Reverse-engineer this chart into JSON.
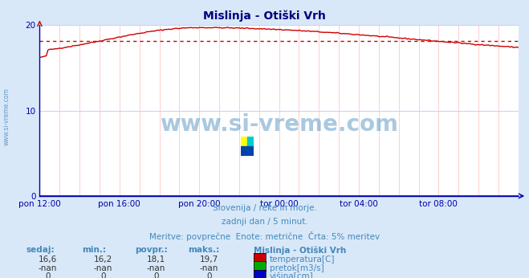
{
  "title": "Mislinja - Otiški Vrh",
  "bg_color": "#d8e8f8",
  "plot_bg_color": "#ffffff",
  "title_color": "#000080",
  "axis_color": "#0000aa",
  "tick_color": "#0000aa",
  "grid_color_h": "#ccccff",
  "grid_color_v": "#ffbbbb",
  "temp_color": "#cc0000",
  "avg_line_color": "#cc0000",
  "height_color": "#0000cc",
  "watermark_color": "#4488bb",
  "xlim": [
    0,
    288
  ],
  "ylim": [
    0,
    20
  ],
  "yticks": [
    0,
    10,
    20
  ],
  "xtick_labels": [
    "pon 12:00",
    "pon 16:00",
    "pon 20:00",
    "tor 00:00",
    "tor 04:00",
    "tor 08:00"
  ],
  "xtick_positions": [
    0,
    48,
    96,
    144,
    192,
    240
  ],
  "avg_value": 18.1,
  "min_value": 16.2,
  "max_value": 19.7,
  "current_value": 16.6,
  "footer_line1": "Slovenija / reke in morje.",
  "footer_line2": "zadnji dan / 5 minut.",
  "footer_line3": "Meritve: povprečne  Enote: metrične  Črta: 5% meritev",
  "table_headers": [
    "sedaj:",
    "min.:",
    "povpr.:",
    "maks.:"
  ],
  "table_row1": [
    "16,6",
    "16,2",
    "18,1",
    "19,7"
  ],
  "table_row2": [
    "-nan",
    "-nan",
    "-nan",
    "-nan"
  ],
  "table_row3": [
    "0",
    "0",
    "0",
    "0"
  ],
  "legend_label": "Mislinja - Otiški Vrh",
  "legend_items": [
    "temperatura[C]",
    "pretok[m3/s]",
    "višina[cm]"
  ],
  "legend_colors": [
    "#cc0000",
    "#00aa00",
    "#0000cc"
  ],
  "watermark_text": "www.si-vreme.com",
  "side_text": "www.si-vreme.com"
}
